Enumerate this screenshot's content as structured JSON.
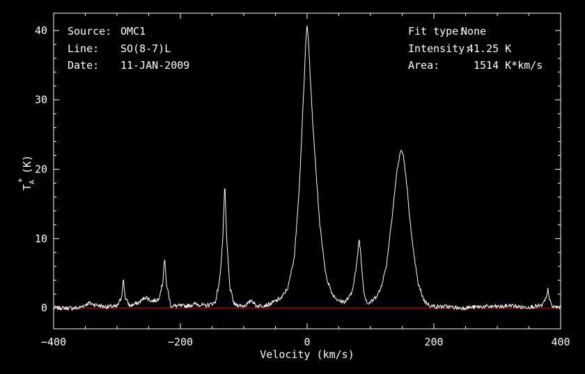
{
  "chart_data": {
    "type": "line",
    "xlabel": "Velocity (km/s)",
    "ylabel": "T",
    "ylabel_sub": "A",
    "ylabel_sup": "*",
    "ylabel_unit": "(K)",
    "xlim": [
      -400,
      400
    ],
    "ylim": [
      -3,
      42.5
    ],
    "x_ticks": [
      -400,
      -200,
      0,
      200,
      400
    ],
    "y_ticks": [
      0,
      10,
      20,
      30,
      40
    ],
    "grid": false,
    "line_color": "#ffffff",
    "baseline_color": "#ff0000",
    "baseline_value": 0,
    "info_left": [
      {
        "key": "Source:",
        "value": "OMC1"
      },
      {
        "key": "Line:",
        "value": "SO(8-7)L"
      },
      {
        "key": "Date:",
        "value": "11-JAN-2009"
      }
    ],
    "info_right": [
      {
        "key": "Fit type:",
        "value": "None"
      },
      {
        "key": "Intensity:",
        "value": "41.25 K"
      },
      {
        "key": "Area:",
        "value": "1514 K*km/s"
      }
    ],
    "series": [
      {
        "values_desc": "spectrum",
        "x": [
          -400,
          -360,
          -345,
          -335,
          -320,
          -300,
          -293,
          -290,
          -287,
          -280,
          -265,
          -255,
          -245,
          -235,
          -228,
          -225,
          -222,
          -215,
          -190,
          -175,
          -160,
          -145,
          -138,
          -133,
          -130,
          -127,
          -122,
          -115,
          -100,
          -92,
          -88,
          -80,
          -60,
          -40,
          -30,
          -20,
          -12,
          -5,
          -2,
          0,
          2,
          5,
          10,
          20,
          30,
          40,
          50,
          60,
          70,
          78,
          82,
          84,
          86,
          90,
          96,
          105,
          115,
          125,
          135,
          142,
          148,
          152,
          158,
          165,
          175,
          185,
          195,
          205,
          220,
          240,
          280,
          310,
          320,
          340,
          370,
          378,
          380,
          382,
          386,
          400
        ],
        "y": [
          0,
          0,
          0.7,
          0.5,
          0.2,
          0.2,
          1.5,
          4.2,
          1.5,
          0.3,
          0.8,
          1.6,
          1.0,
          1.2,
          3.5,
          7.2,
          3.5,
          0.3,
          0.3,
          0.6,
          0.3,
          0.8,
          4.0,
          10.0,
          18.0,
          10.0,
          3.0,
          0.5,
          0.3,
          0.7,
          1.2,
          0.3,
          0.5,
          1.5,
          3.0,
          7.5,
          18.0,
          32.0,
          38.5,
          41.0,
          39.0,
          33.0,
          25.0,
          12.0,
          4.5,
          2.0,
          1.0,
          0.9,
          2.0,
          6.0,
          10.0,
          8.5,
          6.0,
          2.0,
          0.6,
          1.2,
          2.5,
          6.0,
          14.0,
          20.0,
          22.8,
          22.0,
          17.0,
          10.0,
          3.5,
          1.0,
          0.3,
          0.2,
          0.2,
          0.0,
          0.2,
          0.2,
          0.4,
          0.1,
          0.3,
          1.5,
          2.7,
          1.5,
          0.2,
          0.1
        ]
      }
    ]
  }
}
